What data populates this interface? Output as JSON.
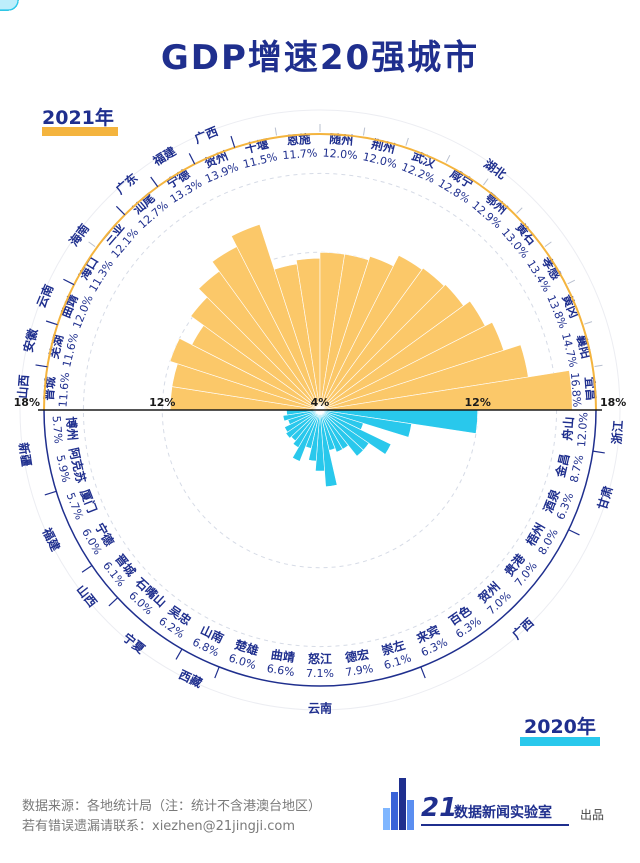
{
  "title": "GDP增速20强城市",
  "footer": {
    "source": "数据来源：各地统计局（注：统计不含港澳台地区）",
    "contact": "若有错误遗漏请联系：xiezhen@21jingji.com",
    "logo_number": "21",
    "logo_name": "数据新闻实验室",
    "logo_suffix": "出品"
  },
  "colors": {
    "top": "#f4b43e",
    "top_fill": "#fbc869",
    "bottom": "#29c8ec",
    "accent": "#1f2f8e"
  },
  "chart_data": [
    {
      "type": "bar",
      "subtype": "radial-semicircle",
      "series_name": "2021年",
      "axis_min": 4,
      "axis_max": 18,
      "tick_labels": [
        "18%",
        "12%",
        "4%",
        "12%",
        "18%"
      ],
      "categories": [
        "晋城",
        "芜湖",
        "曲靖",
        "海口",
        "三亚",
        "汕尾",
        "宁德",
        "贺州",
        "十堰",
        "恩施",
        "随州",
        "荆州",
        "武汉",
        "咸宁",
        "鄂州",
        "黄石",
        "孝感",
        "黄冈",
        "襄阳",
        "宜昌"
      ],
      "values": [
        11.6,
        11.6,
        12.0,
        11.3,
        12.1,
        12.7,
        13.3,
        13.9,
        11.5,
        11.7,
        12.0,
        12.0,
        12.2,
        12.8,
        12.9,
        13.0,
        13.4,
        13.8,
        14.7,
        16.8
      ],
      "value_labels": [
        "11.6%",
        "11.6%",
        "12.0%",
        "11.3%",
        "12.1%",
        "12.7%",
        "13.3%",
        "13.9%",
        "11.5%",
        "11.7%",
        "12.0%",
        "12.0%",
        "12.2%",
        "12.8%",
        "12.9%",
        "13.0%",
        "13.4%",
        "13.8%",
        "14.7%",
        "16.8%"
      ],
      "provinces": [
        {
          "name": "山西",
          "from": 0,
          "to": 0
        },
        {
          "name": "安徽",
          "from": 1,
          "to": 1
        },
        {
          "name": "云南",
          "from": 2,
          "to": 2
        },
        {
          "name": "海南",
          "from": 3,
          "to": 4
        },
        {
          "name": "广东",
          "from": 5,
          "to": 5
        },
        {
          "name": "福建",
          "from": 6,
          "to": 6
        },
        {
          "name": "广西",
          "from": 7,
          "to": 7
        },
        {
          "name": "湖北",
          "from": 8,
          "to": 19
        }
      ]
    },
    {
      "type": "bar",
      "subtype": "radial-semicircle",
      "series_name": "2020年",
      "axis_min": 4,
      "axis_max": 18,
      "categories": [
        "舟山",
        "金昌",
        "酒泉",
        "梧州",
        "贵港",
        "贺州",
        "百色",
        "来宾",
        "崇左",
        "德宏",
        "怒江",
        "曲靖",
        "楚雄",
        "山南",
        "吴忠",
        "石嘴山",
        "晋城",
        "宁德",
        "厦门",
        "阿克苏",
        "博州"
      ],
      "values": [
        12.0,
        8.7,
        6.3,
        8.0,
        7.0,
        7.0,
        6.3,
        6.3,
        6.1,
        7.9,
        7.1,
        6.6,
        6.0,
        6.8,
        6.2,
        6.0,
        6.1,
        6.0,
        5.7,
        5.9,
        5.7
      ],
      "value_labels": [
        "12.0%",
        "8.7%",
        "6.3%",
        "8.0%",
        "7.0%",
        "7.0%",
        "6.3%",
        "6.3%",
        "6.1%",
        "7.9%",
        "7.1%",
        "6.6%",
        "6.0%",
        "6.8%",
        "6.2%",
        "6.0%",
        "6.1%",
        "6.0%",
        "5.7%",
        "5.9%",
        "5.7%"
      ],
      "provinces": [
        {
          "name": "浙江",
          "from": 0,
          "to": 0
        },
        {
          "name": "甘肃",
          "from": 1,
          "to": 2
        },
        {
          "name": "广西",
          "from": 3,
          "to": 7
        },
        {
          "name": "云南",
          "from": 8,
          "to": 12
        },
        {
          "name": "西藏",
          "from": 13,
          "to": 13
        },
        {
          "name": "宁夏",
          "from": 14,
          "to": 15
        },
        {
          "name": "山西",
          "from": 16,
          "to": 16
        },
        {
          "name": "福建",
          "from": 17,
          "to": 18
        },
        {
          "name": "新疆",
          "from": 19,
          "to": 20
        }
      ]
    }
  ]
}
